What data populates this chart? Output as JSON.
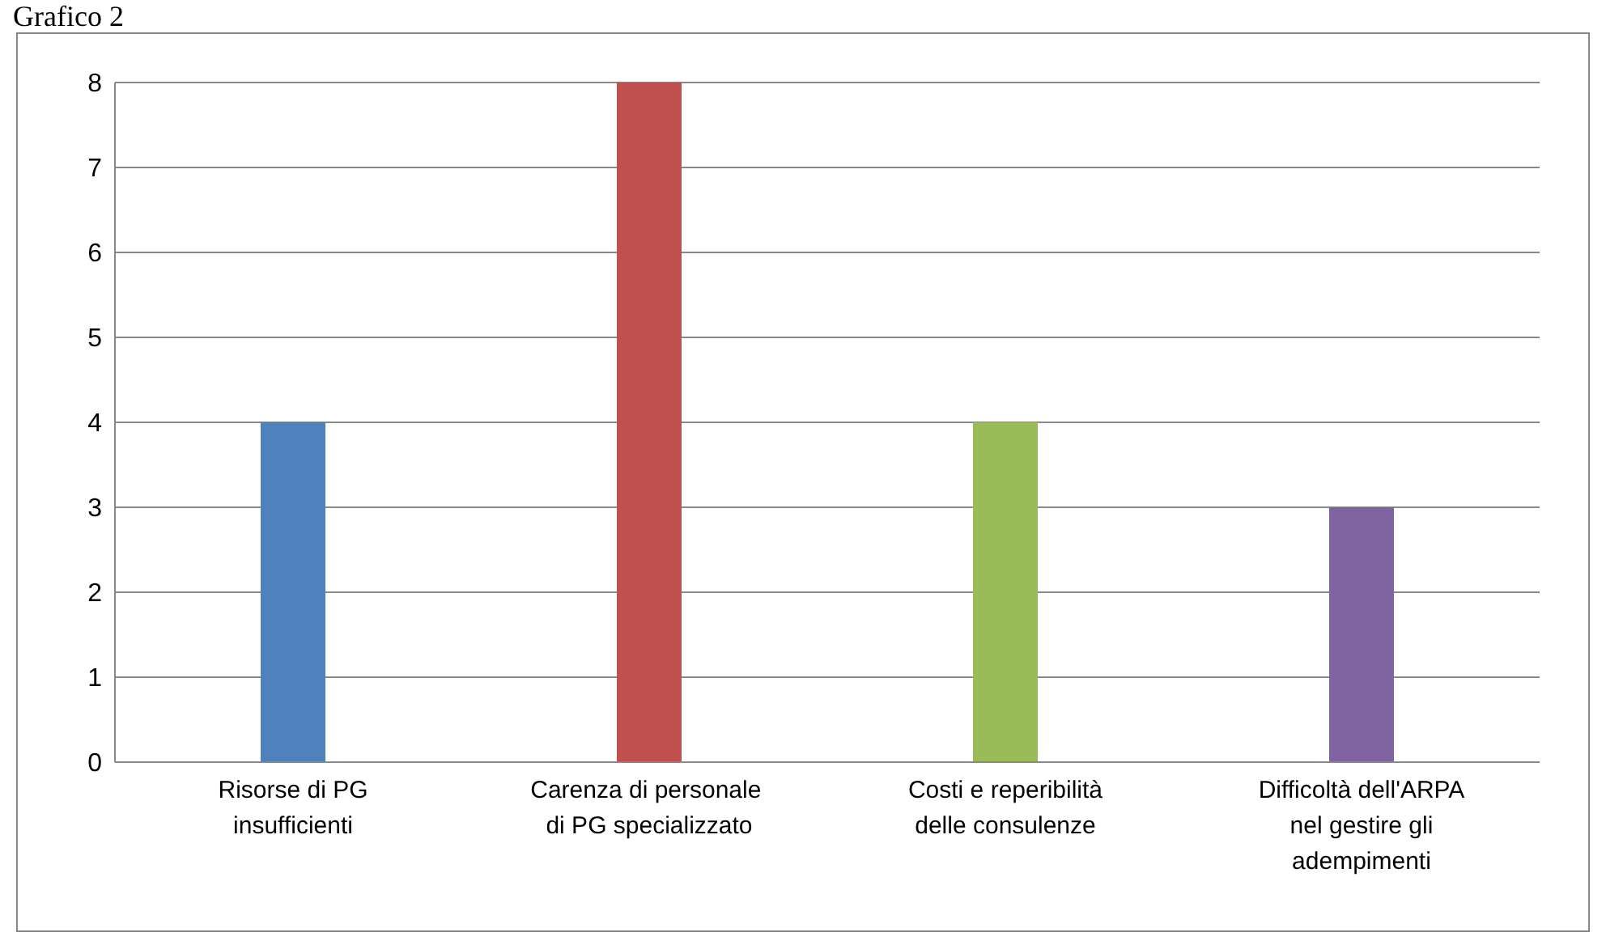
{
  "chart_data": {
    "type": "bar",
    "title": "Grafico 2",
    "categories": [
      "Risorse di PG insufficienti",
      "Carenza di personale  di PG specializzato",
      "Costi e reperibilità delle consulenze",
      "Difficoltà dell'ARPA nel gestire gli adempimenti"
    ],
    "values": [
      4,
      8,
      4,
      3
    ],
    "colors": [
      "#4f81bd",
      "#c0504d",
      "#9bbb59",
      "#8064a2"
    ],
    "ylim": [
      0,
      8
    ],
    "yticks": [
      0,
      1,
      2,
      3,
      4,
      5,
      6,
      7,
      8
    ],
    "grid": "y"
  }
}
